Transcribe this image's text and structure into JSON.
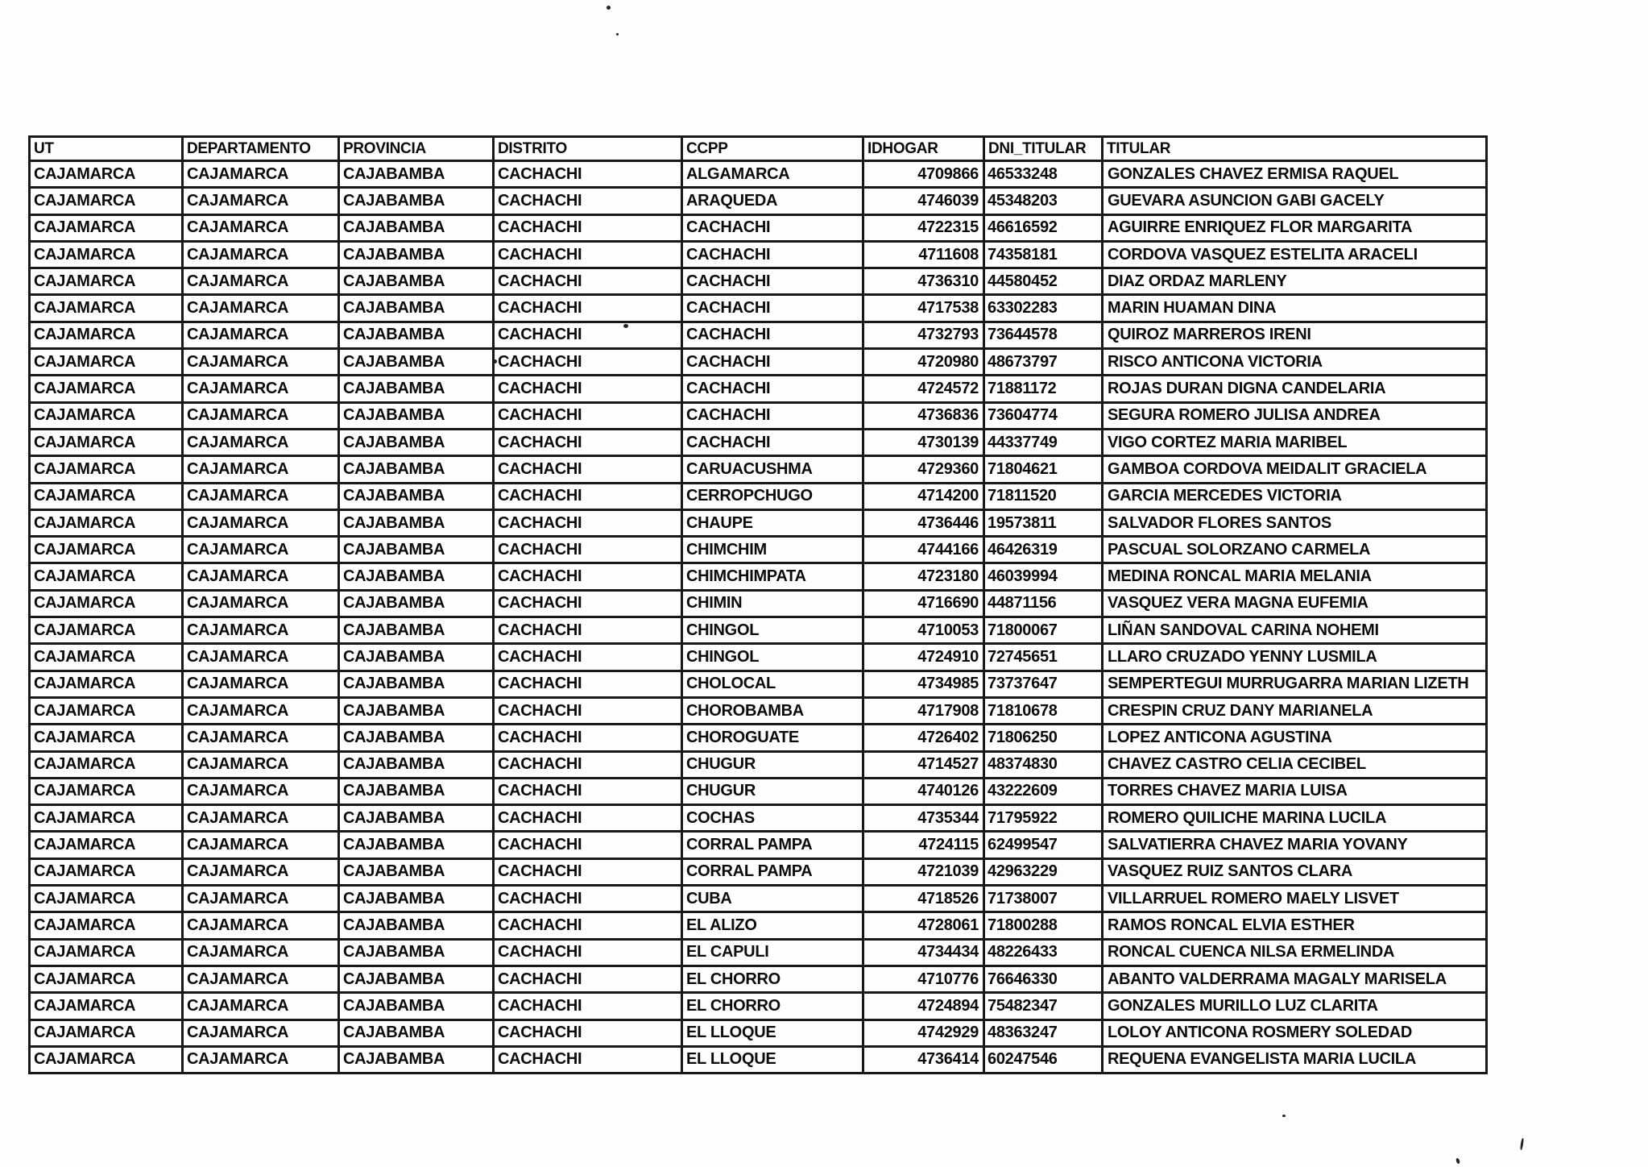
{
  "table": {
    "headers": [
      "UT",
      "DEPARTAMENTO",
      "PROVINCIA",
      "DISTRITO",
      "CCPP",
      "IDHOGAR",
      "DNI_TITULAR",
      "TITULAR"
    ],
    "rows": [
      [
        "CAJAMARCA",
        "CAJAMARCA",
        "CAJABAMBA",
        "CACHACHI",
        "ALGAMARCA",
        "4709866",
        "46533248",
        "GONZALES CHAVEZ ERMISA RAQUEL"
      ],
      [
        "CAJAMARCA",
        "CAJAMARCA",
        "CAJABAMBA",
        "CACHACHI",
        "ARAQUEDA",
        "4746039",
        "45348203",
        "GUEVARA ASUNCION GABI GACELY"
      ],
      [
        "CAJAMARCA",
        "CAJAMARCA",
        "CAJABAMBA",
        "CACHACHI",
        "CACHACHI",
        "4722315",
        "46616592",
        "AGUIRRE ENRIQUEZ FLOR MARGARITA"
      ],
      [
        "CAJAMARCA",
        "CAJAMARCA",
        "CAJABAMBA",
        "CACHACHI",
        "CACHACHI",
        "4711608",
        "74358181",
        "CORDOVA VASQUEZ ESTELITA ARACELI"
      ],
      [
        "CAJAMARCA",
        "CAJAMARCA",
        "CAJABAMBA",
        "CACHACHI",
        "CACHACHI",
        "4736310",
        "44580452",
        "DIAZ ORDAZ MARLENY"
      ],
      [
        "CAJAMARCA",
        "CAJAMARCA",
        "CAJABAMBA",
        "CACHACHI",
        "CACHACHI",
        "4717538",
        "63302283",
        "MARIN HUAMAN DINA"
      ],
      [
        "CAJAMARCA",
        "CAJAMARCA",
        "CAJABAMBA",
        "CACHACHI",
        "CACHACHI",
        "4732793",
        "73644578",
        "QUIROZ MARREROS IRENI"
      ],
      [
        "CAJAMARCA",
        "CAJAMARCA",
        "CAJABAMBA",
        "CACHACHI",
        "CACHACHI",
        "4720980",
        "48673797",
        "RISCO ANTICONA VICTORIA"
      ],
      [
        "CAJAMARCA",
        "CAJAMARCA",
        "CAJABAMBA",
        "CACHACHI",
        "CACHACHI",
        "4724572",
        "71881172",
        "ROJAS DURAN DIGNA CANDELARIA"
      ],
      [
        "CAJAMARCA",
        "CAJAMARCA",
        "CAJABAMBA",
        "CACHACHI",
        "CACHACHI",
        "4736836",
        "73604774",
        "SEGURA ROMERO JULISA ANDREA"
      ],
      [
        "CAJAMARCA",
        "CAJAMARCA",
        "CAJABAMBA",
        "CACHACHI",
        "CACHACHI",
        "4730139",
        "44337749",
        "VIGO CORTEZ MARIA MARIBEL"
      ],
      [
        "CAJAMARCA",
        "CAJAMARCA",
        "CAJABAMBA",
        "CACHACHI",
        "CARUACUSHMA",
        "4729360",
        "71804621",
        "GAMBOA CORDOVA MEIDALIT GRACIELA"
      ],
      [
        "CAJAMARCA",
        "CAJAMARCA",
        "CAJABAMBA",
        "CACHACHI",
        "CERROPCHUGO",
        "4714200",
        "71811520",
        "GARCIA MERCEDES VICTORIA"
      ],
      [
        "CAJAMARCA",
        "CAJAMARCA",
        "CAJABAMBA",
        "CACHACHI",
        "CHAUPE",
        "4736446",
        "19573811",
        "SALVADOR FLORES SANTOS"
      ],
      [
        "CAJAMARCA",
        "CAJAMARCA",
        "CAJABAMBA",
        "CACHACHI",
        "CHIMCHIM",
        "4744166",
        "46426319",
        "PASCUAL SOLORZANO CARMELA"
      ],
      [
        "CAJAMARCA",
        "CAJAMARCA",
        "CAJABAMBA",
        "CACHACHI",
        "CHIMCHIMPATA",
        "4723180",
        "46039994",
        "MEDINA RONCAL MARIA MELANIA"
      ],
      [
        "CAJAMARCA",
        "CAJAMARCA",
        "CAJABAMBA",
        "CACHACHI",
        "CHIMIN",
        "4716690",
        "44871156",
        "VASQUEZ VERA MAGNA EUFEMIA"
      ],
      [
        "CAJAMARCA",
        "CAJAMARCA",
        "CAJABAMBA",
        "CACHACHI",
        "CHINGOL",
        "4710053",
        "71800067",
        "LIÑAN SANDOVAL CARINA NOHEMI"
      ],
      [
        "CAJAMARCA",
        "CAJAMARCA",
        "CAJABAMBA",
        "CACHACHI",
        "CHINGOL",
        "4724910",
        "72745651",
        "LLARO CRUZADO YENNY LUSMILA"
      ],
      [
        "CAJAMARCA",
        "CAJAMARCA",
        "CAJABAMBA",
        "CACHACHI",
        "CHOLOCAL",
        "4734985",
        "73737647",
        "SEMPERTEGUI MURRUGARRA MARIAN LIZETH"
      ],
      [
        "CAJAMARCA",
        "CAJAMARCA",
        "CAJABAMBA",
        "CACHACHI",
        "CHOROBAMBA",
        "4717908",
        "71810678",
        "CRESPIN CRUZ DANY MARIANELA"
      ],
      [
        "CAJAMARCA",
        "CAJAMARCA",
        "CAJABAMBA",
        "CACHACHI",
        "CHOROGUATE",
        "4726402",
        "71806250",
        "LOPEZ ANTICONA AGUSTINA"
      ],
      [
        "CAJAMARCA",
        "CAJAMARCA",
        "CAJABAMBA",
        "CACHACHI",
        "CHUGUR",
        "4714527",
        "48374830",
        "CHAVEZ CASTRO CELIA CECIBEL"
      ],
      [
        "CAJAMARCA",
        "CAJAMARCA",
        "CAJABAMBA",
        "CACHACHI",
        "CHUGUR",
        "4740126",
        "43222609",
        "TORRES CHAVEZ MARIA LUISA"
      ],
      [
        "CAJAMARCA",
        "CAJAMARCA",
        "CAJABAMBA",
        "CACHACHI",
        "COCHAS",
        "4735344",
        "71795922",
        "ROMERO QUILICHE MARINA LUCILA"
      ],
      [
        "CAJAMARCA",
        "CAJAMARCA",
        "CAJABAMBA",
        "CACHACHI",
        "CORRAL PAMPA",
        "4724115",
        "62499547",
        "SALVATIERRA CHAVEZ MARIA YOVANY"
      ],
      [
        "CAJAMARCA",
        "CAJAMARCA",
        "CAJABAMBA",
        "CACHACHI",
        "CORRAL PAMPA",
        "4721039",
        "42963229",
        "VASQUEZ RUIZ SANTOS CLARA"
      ],
      [
        "CAJAMARCA",
        "CAJAMARCA",
        "CAJABAMBA",
        "CACHACHI",
        "CUBA",
        "4718526",
        "71738007",
        "VILLARRUEL ROMERO MAELY LISVET"
      ],
      [
        "CAJAMARCA",
        "CAJAMARCA",
        "CAJABAMBA",
        "CACHACHI",
        "EL ALIZO",
        "4728061",
        "71800288",
        "RAMOS RONCAL ELVIA ESTHER"
      ],
      [
        "CAJAMARCA",
        "CAJAMARCA",
        "CAJABAMBA",
        "CACHACHI",
        "EL CAPULI",
        "4734434",
        "48226433",
        "RONCAL CUENCA NILSA ERMELINDA"
      ],
      [
        "CAJAMARCA",
        "CAJAMARCA",
        "CAJABAMBA",
        "CACHACHI",
        "EL CHORRO",
        "4710776",
        "76646330",
        "ABANTO VALDERRAMA MAGALY MARISELA"
      ],
      [
        "CAJAMARCA",
        "CAJAMARCA",
        "CAJABAMBA",
        "CACHACHI",
        "EL CHORRO",
        "4724894",
        "75482347",
        "GONZALES MURILLO LUZ CLARITA"
      ],
      [
        "CAJAMARCA",
        "CAJAMARCA",
        "CAJABAMBA",
        "CACHACHI",
        "EL LLOQUE",
        "4742929",
        "48363247",
        "LOLOY ANTICONA ROSMERY SOLEDAD"
      ],
      [
        "CAJAMARCA",
        "CAJAMARCA",
        "CAJABAMBA",
        "CACHACHI",
        "EL LLOQUE",
        "4736414",
        "60247546",
        "REQUENA EVANGELISTA MARIA LUCILA"
      ]
    ]
  },
  "colors": {
    "paper": "#fefefe",
    "ink": "#0b0b0b",
    "border": "#181818"
  }
}
